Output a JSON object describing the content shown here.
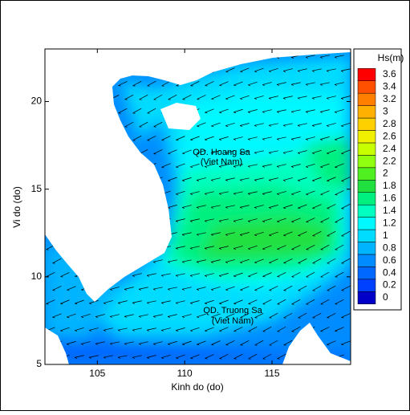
{
  "chart_data": {
    "type": "map",
    "x_label": "Kinh do (do)",
    "y_label": "Vi do (do)",
    "xlim": [
      102,
      119.5
    ],
    "ylim": [
      5,
      23
    ],
    "xticks": [
      105,
      110,
      115
    ],
    "yticks": [
      5,
      10,
      15,
      20
    ],
    "annotations": [
      "QD. Hoang Sa",
      "(Viet Nam)",
      "QD. Truong Sa",
      "(Viet Nam)"
    ],
    "colorbar": {
      "title": "Hs(m)",
      "ticks": [
        0,
        0.2,
        0.4,
        0.6,
        0.8,
        1,
        1.2,
        1.4,
        1.6,
        1.8,
        2,
        2.2,
        2.4,
        2.6,
        2.8,
        3,
        3.2,
        3.4,
        3.6
      ],
      "colors": [
        "#0000c8",
        "#0040ff",
        "#0068ff",
        "#008cff",
        "#00b4ff",
        "#00dcff",
        "#00f8ff",
        "#00ffc0",
        "#00f080",
        "#20e040",
        "#50f020",
        "#90ff10",
        "#c8ff00",
        "#f0f000",
        "#ffd000",
        "#ffb000",
        "#ff8000",
        "#ff5000",
        "#ff0000"
      ]
    }
  }
}
